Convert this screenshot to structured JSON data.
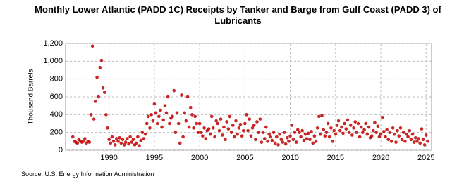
{
  "chart_data": {
    "type": "scatter",
    "title": "Monthly Lower Atlantic (PADD 1C) Receipts by Tanker and Barge from Gulf Coast (PADD 3) of Lubricants",
    "y_label": "Thousand Barrels",
    "source": "Source: U.S. Energy Information Administration",
    "color": "#c00000",
    "grid": true,
    "xlim": [
      1985.2,
      2025.6
    ],
    "xticks": [
      1990,
      1995,
      2000,
      2005,
      2010,
      2015,
      2020,
      2025
    ],
    "ylim": [
      0,
      1200
    ],
    "yticks": [
      0,
      200,
      400,
      600,
      800,
      {
        "value": 1000,
        "label": "1,000"
      },
      {
        "value": 1200,
        "label": "1,200"
      }
    ],
    "x": [
      1986.0,
      1986.17,
      1986.33,
      1986.5,
      1986.67,
      1986.83,
      1987.0,
      1987.17,
      1987.33,
      1987.5,
      1987.67,
      1987.83,
      1988.0,
      1988.17,
      1988.33,
      1988.5,
      1988.67,
      1988.83,
      1989.0,
      1989.17,
      1989.33,
      1989.5,
      1989.67,
      1989.83,
      1990.0,
      1990.17,
      1990.33,
      1990.5,
      1990.67,
      1990.83,
      1991.0,
      1991.17,
      1991.33,
      1991.5,
      1991.67,
      1991.83,
      1992.0,
      1992.17,
      1992.33,
      1992.5,
      1992.67,
      1992.83,
      1993.0,
      1993.17,
      1993.33,
      1993.5,
      1993.67,
      1993.83,
      1994.0,
      1994.17,
      1994.33,
      1994.5,
      1994.67,
      1994.83,
      1995.0,
      1995.17,
      1995.33,
      1995.5,
      1995.67,
      1995.83,
      1996.0,
      1996.17,
      1996.33,
      1996.5,
      1996.67,
      1996.83,
      1997.0,
      1997.17,
      1997.33,
      1997.5,
      1997.67,
      1997.83,
      1998.0,
      1998.17,
      1998.33,
      1998.5,
      1998.67,
      1998.83,
      1999.0,
      1999.17,
      1999.33,
      1999.5,
      1999.67,
      1999.83,
      2000.0,
      2000.17,
      2000.33,
      2000.5,
      2000.67,
      2000.83,
      2001.0,
      2001.17,
      2001.33,
      2001.5,
      2001.67,
      2001.83,
      2002.0,
      2002.17,
      2002.33,
      2002.5,
      2002.67,
      2002.83,
      2003.0,
      2003.17,
      2003.33,
      2003.5,
      2003.67,
      2003.83,
      2004.0,
      2004.17,
      2004.33,
      2004.5,
      2004.67,
      2004.83,
      2005.0,
      2005.17,
      2005.33,
      2005.5,
      2005.67,
      2005.83,
      2006.0,
      2006.17,
      2006.33,
      2006.5,
      2006.67,
      2006.83,
      2007.0,
      2007.17,
      2007.33,
      2007.5,
      2007.67,
      2007.83,
      2008.0,
      2008.17,
      2008.33,
      2008.5,
      2008.67,
      2008.83,
      2009.0,
      2009.17,
      2009.33,
      2009.5,
      2009.67,
      2009.83,
      2010.0,
      2010.17,
      2010.33,
      2010.5,
      2010.67,
      2010.83,
      2011.0,
      2011.17,
      2011.33,
      2011.5,
      2011.67,
      2011.83,
      2012.0,
      2012.17,
      2012.33,
      2012.5,
      2012.67,
      2012.83,
      2013.0,
      2013.17,
      2013.33,
      2013.5,
      2013.67,
      2013.83,
      2014.0,
      2014.17,
      2014.33,
      2014.5,
      2014.67,
      2014.83,
      2015.0,
      2015.17,
      2015.33,
      2015.5,
      2015.67,
      2015.83,
      2016.0,
      2016.17,
      2016.33,
      2016.5,
      2016.67,
      2016.83,
      2017.0,
      2017.17,
      2017.33,
      2017.5,
      2017.67,
      2017.83,
      2018.0,
      2018.17,
      2018.33,
      2018.5,
      2018.67,
      2018.83,
      2019.0,
      2019.17,
      2019.33,
      2019.5,
      2019.67,
      2019.83,
      2020.0,
      2020.17,
      2020.33,
      2020.5,
      2020.67,
      2020.83,
      2021.0,
      2021.17,
      2021.33,
      2021.5,
      2021.67,
      2021.83,
      2022.0,
      2022.17,
      2022.33,
      2022.5,
      2022.67,
      2022.83,
      2023.0,
      2023.17,
      2023.33,
      2023.5,
      2023.67,
      2023.83,
      2024.0,
      2024.17,
      2024.33,
      2024.5,
      2024.67,
      2024.83,
      2025.0,
      2025.17
    ],
    "values": [
      150,
      100,
      90,
      80,
      120,
      100,
      90,
      100,
      130,
      80,
      100,
      90,
      400,
      1170,
      350,
      550,
      820,
      600,
      930,
      1010,
      700,
      650,
      400,
      250,
      120,
      80,
      150,
      100,
      60,
      130,
      100,
      140,
      80,
      120,
      60,
      90,
      130,
      70,
      150,
      90,
      120,
      60,
      80,
      150,
      50,
      110,
      200,
      130,
      180,
      300,
      380,
      250,
      400,
      330,
      520,
      420,
      300,
      380,
      450,
      260,
      340,
      500,
      420,
      600,
      300,
      360,
      380,
      670,
      200,
      420,
      300,
      80,
      620,
      150,
      420,
      330,
      600,
      260,
      480,
      400,
      250,
      380,
      300,
      200,
      300,
      200,
      160,
      250,
      130,
      220,
      240,
      180,
      380,
      250,
      150,
      330,
      300,
      220,
      350,
      170,
      260,
      120,
      320,
      240,
      380,
      200,
      280,
      150,
      330,
      180,
      250,
      290,
      160,
      220,
      300,
      400,
      220,
      350,
      160,
      250,
      280,
      120,
      320,
      200,
      350,
      90,
      200,
      130,
      260,
      100,
      180,
      150,
      110,
      200,
      80,
      150,
      60,
      180,
      120,
      90,
      200,
      70,
      140,
      100,
      160,
      280,
      120,
      200,
      90,
      230,
      200,
      150,
      220,
      110,
      180,
      130,
      190,
      120,
      210,
      80,
      160,
      100,
      250,
      380,
      180,
      390,
      230,
      160,
      200,
      300,
      150,
      250,
      100,
      220,
      180,
      280,
      330,
      220,
      260,
      190,
      300,
      240,
      340,
      200,
      280,
      170,
      250,
      320,
      200,
      300,
      150,
      260,
      200,
      230,
      300,
      180,
      260,
      140,
      160,
      220,
      310,
      200,
      270,
      150,
      180,
      370,
      210,
      150,
      230,
      120,
      200,
      100,
      250,
      180,
      90,
      220,
      160,
      250,
      120,
      200,
      100,
      180,
      150,
      220,
      120,
      180,
      90,
      140,
      100,
      130,
      80,
      240,
      120,
      60,
      170,
      100
    ]
  }
}
